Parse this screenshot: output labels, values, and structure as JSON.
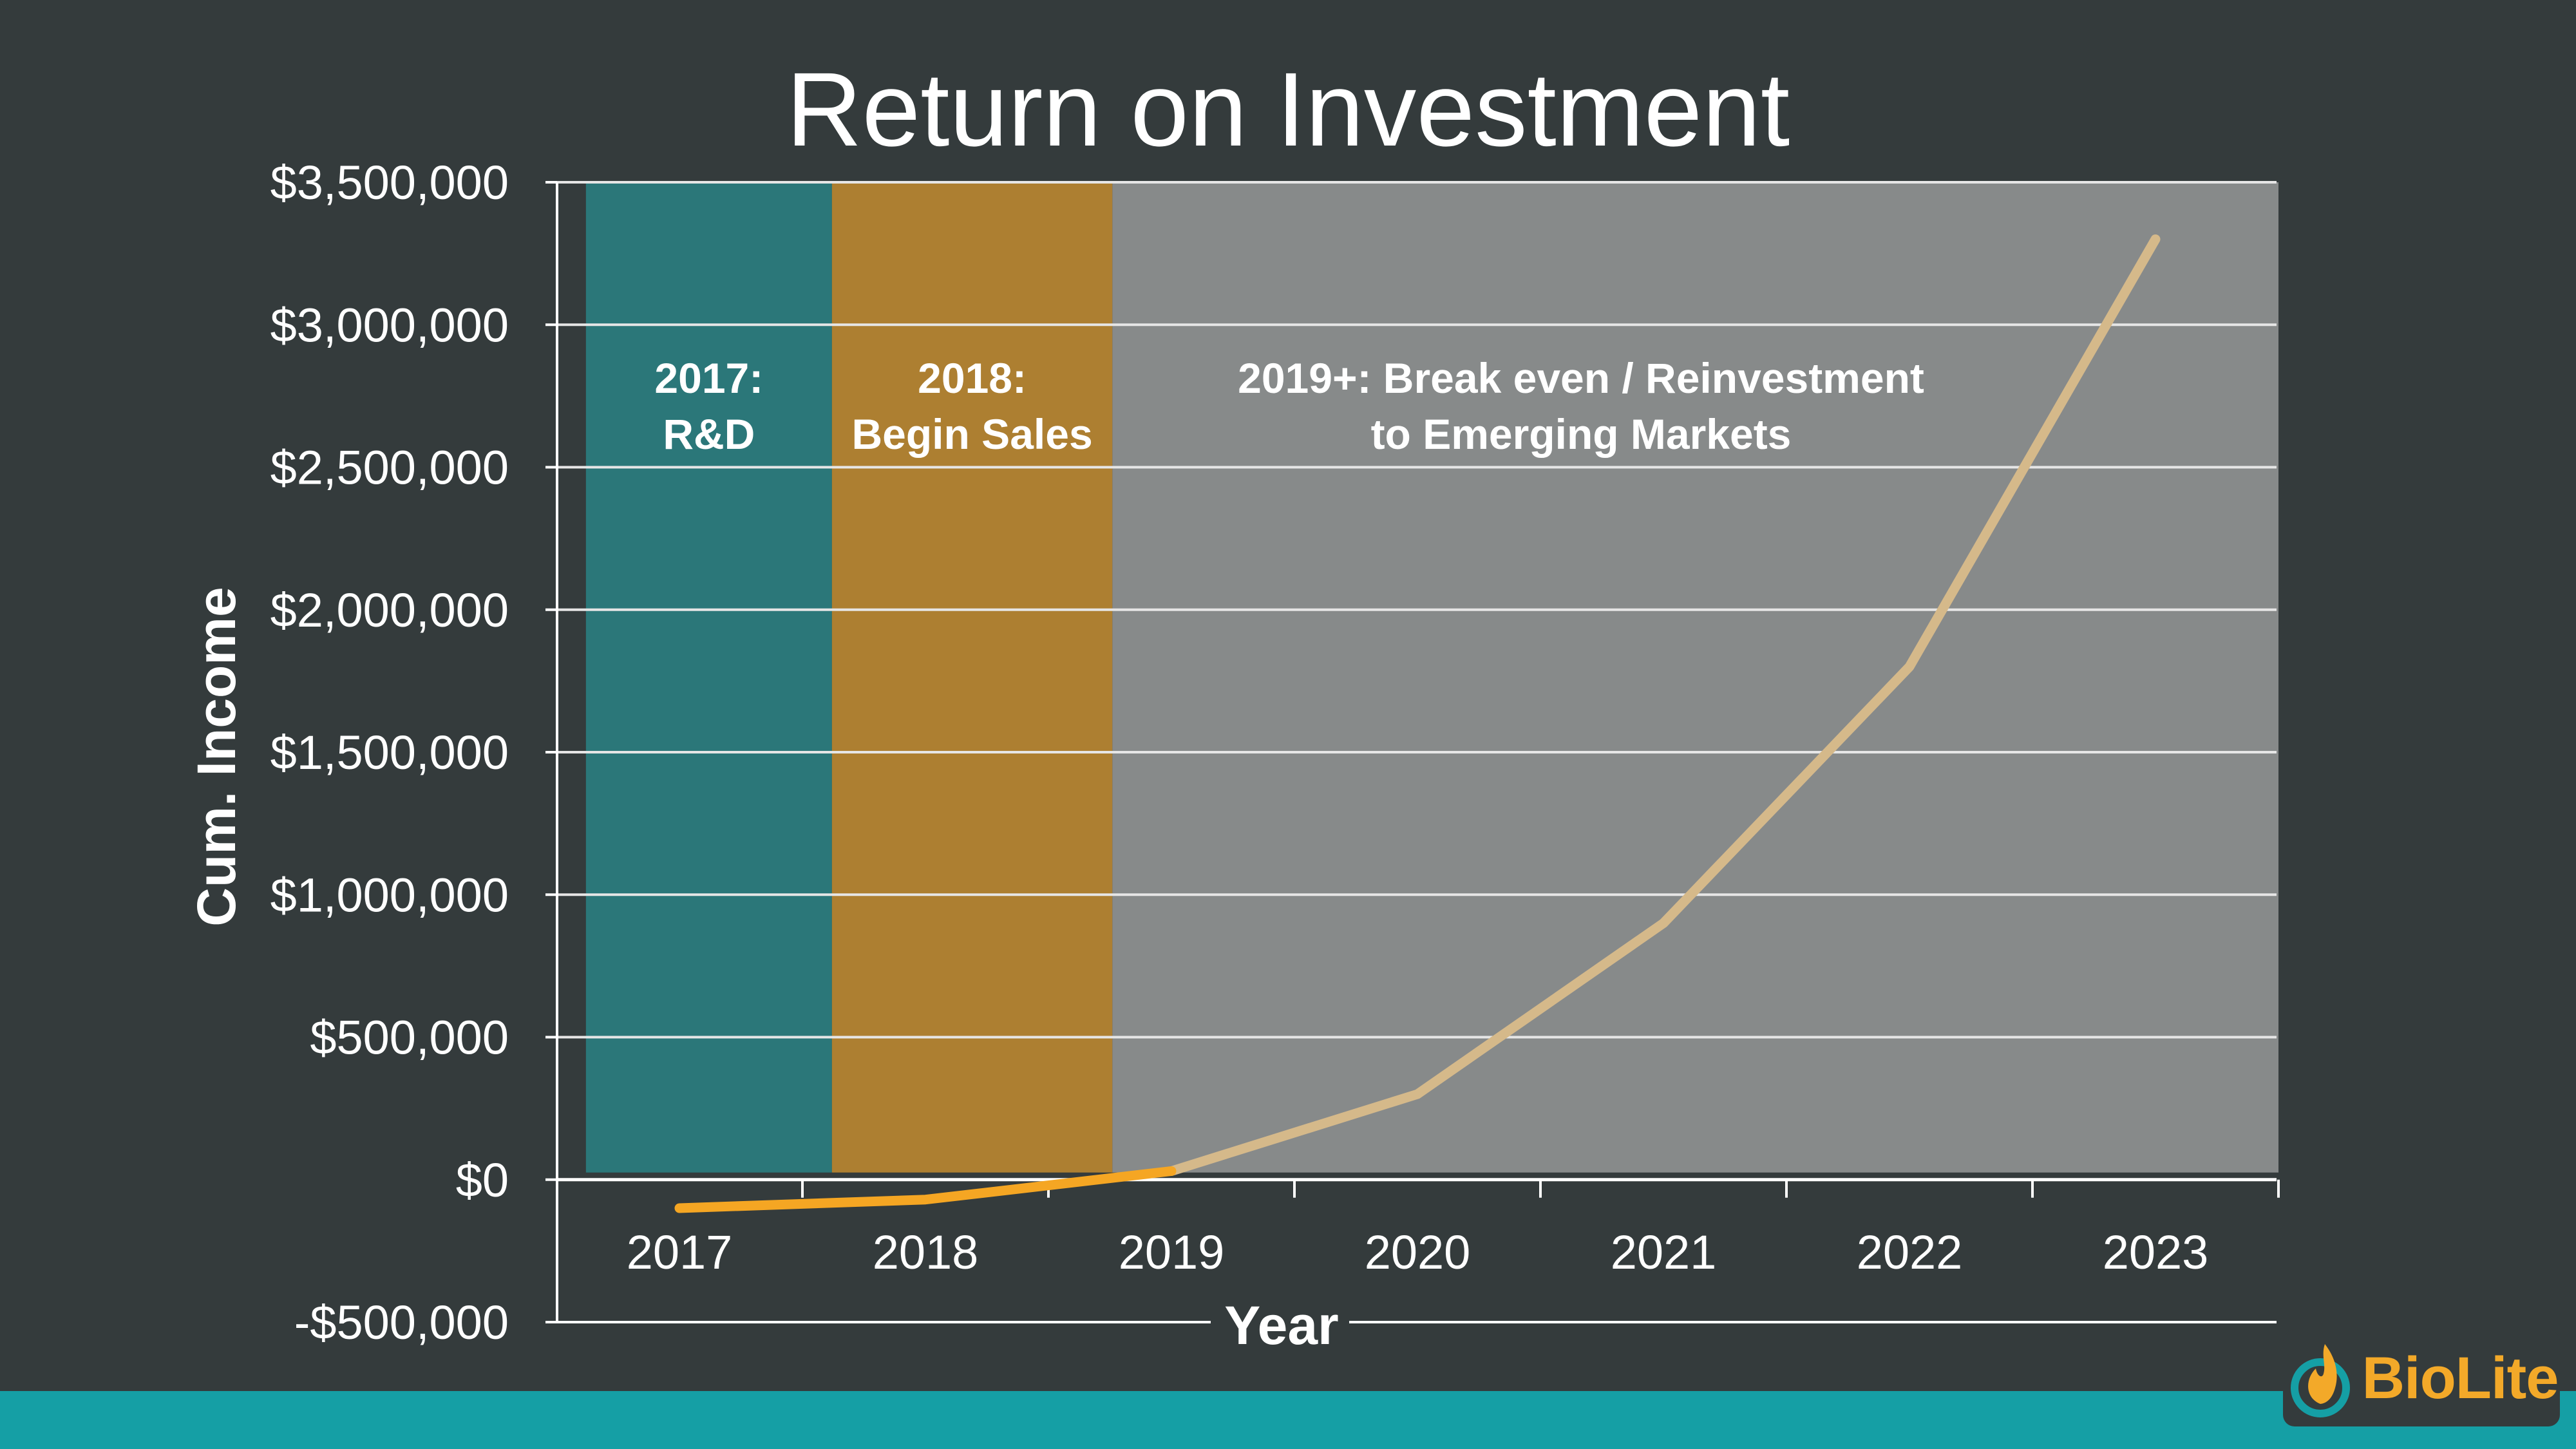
{
  "slide": {
    "title": "Return on Investment",
    "logo_text": "BioLite",
    "logo_icon": "flame-icon",
    "colors": {
      "background": "#343b3c",
      "footer_bar": "#159fa5",
      "logo": "#f3a929"
    }
  },
  "chart_data": {
    "type": "line",
    "title": "Return on Investment",
    "xlabel": "Year",
    "ylabel": "Cum. Income",
    "categories": [
      "2017",
      "2018",
      "2019",
      "2020",
      "2021",
      "2022",
      "2023"
    ],
    "series": [
      {
        "values": [
          -100000,
          -70000,
          30000,
          300000,
          900000,
          1800000,
          3300000
        ]
      }
    ],
    "ylim": [
      -500000,
      3500000
    ],
    "yticks": [
      -500000,
      0,
      500000,
      1000000,
      1500000,
      2000000,
      2500000,
      3000000,
      3500000
    ],
    "ytick_labels": [
      "-$500,000",
      "$0",
      "$500,000",
      "$1,000,000",
      "$1,500,000",
      "$2,000,000",
      "$2,500,000",
      "$3,000,000",
      "$3,500,000"
    ],
    "grid": true,
    "phases": [
      {
        "line1": "2017:",
        "line2": "R&D",
        "start": 2016.62,
        "end": 2017.62,
        "color": "#2b7779"
      },
      {
        "line1": "2018:",
        "line2": "Begin Sales",
        "start": 2017.62,
        "end": 2018.76,
        "color": "#ad7f31"
      },
      {
        "line1": "2019+: Break even / Reinvestment",
        "line2": "to Emerging Markets",
        "start": 2018.76,
        "end": 2023.5,
        "color": "#878a8a"
      }
    ],
    "phase_top": 3500000,
    "phase_bottom": 25000,
    "series_colors": {
      "early": "#f5a623",
      "late": "#d5b98a"
    },
    "color_change_at": 2019
  }
}
